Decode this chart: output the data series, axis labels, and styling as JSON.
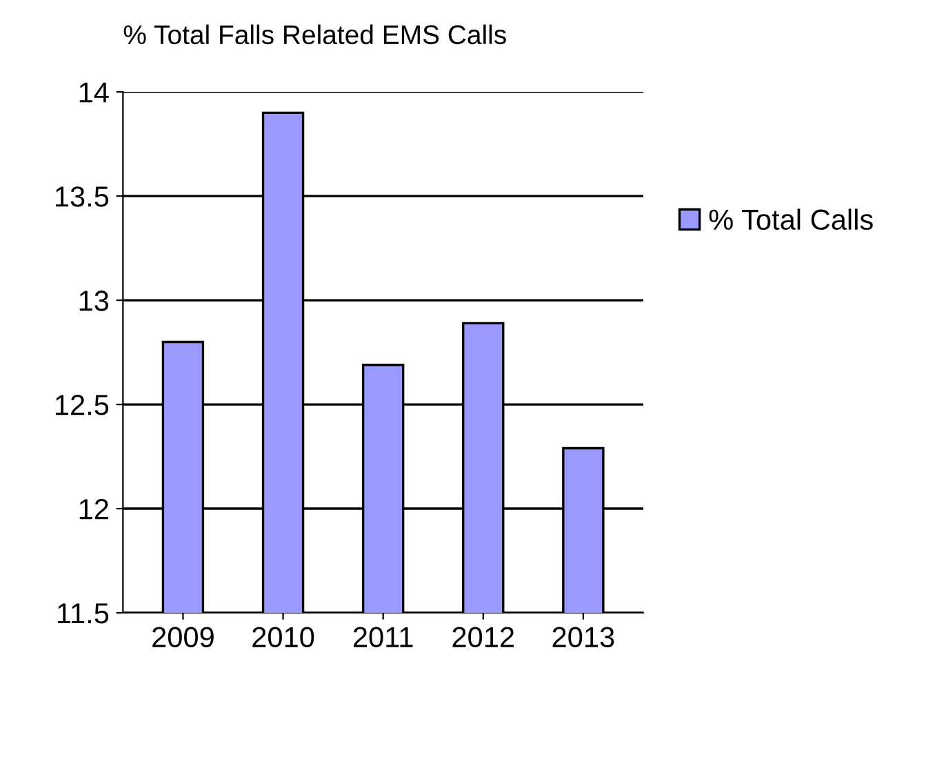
{
  "chart_data": {
    "type": "bar",
    "title": "% Total Falls Related EMS Calls",
    "categories": [
      "2009",
      "2010",
      "2011",
      "2012",
      "2013"
    ],
    "series": [
      {
        "name": "% Total Calls",
        "color": "#9999ff",
        "values": [
          12.8,
          13.9,
          12.69,
          12.89,
          12.29
        ]
      }
    ],
    "ylim": [
      11.5,
      14
    ],
    "yticks": [
      11.5,
      12,
      12.5,
      13,
      13.5,
      14
    ],
    "grid": "y",
    "legend": "right"
  }
}
